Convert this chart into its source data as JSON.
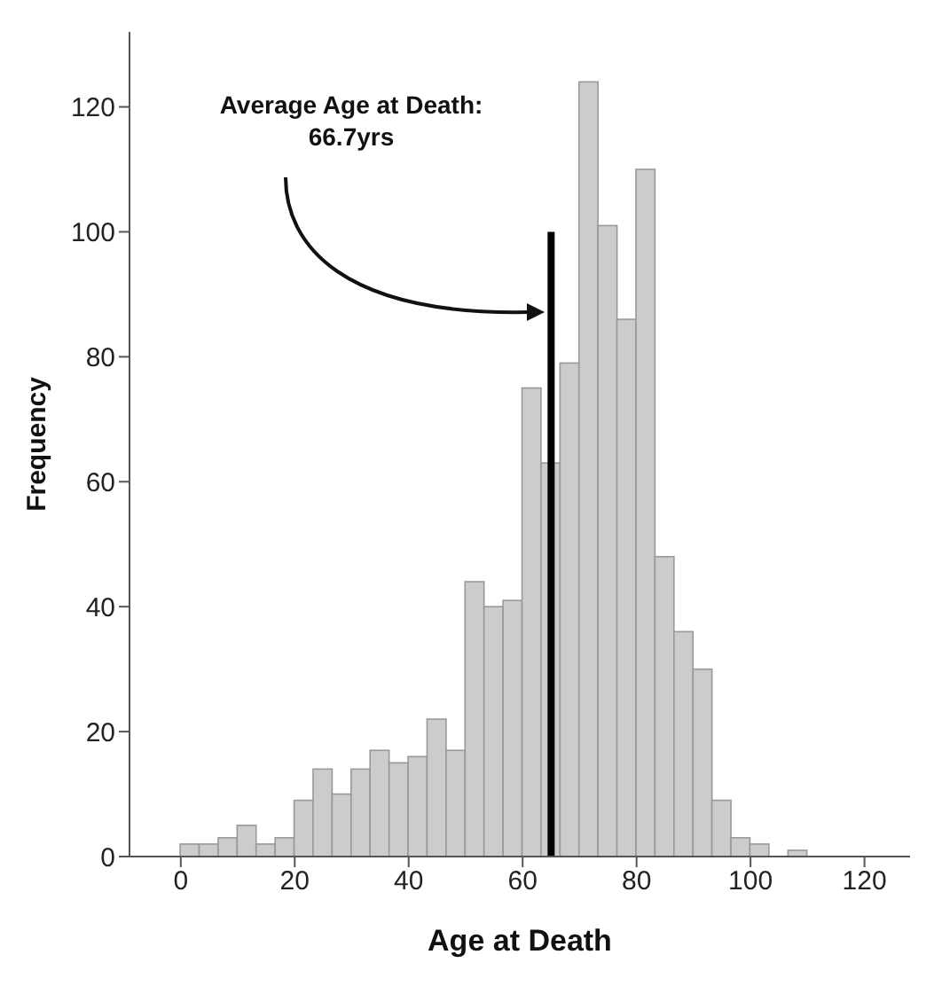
{
  "chart_data": {
    "type": "histogram",
    "xlabel": "Age at Death",
    "ylabel": "Frequency",
    "bins": [
      0,
      3.33,
      6.67,
      10,
      13.33,
      16.67,
      20,
      23.33,
      26.67,
      30,
      33.33,
      36.67,
      40,
      43.33,
      46.67,
      50,
      53.33,
      56.67,
      60,
      63.33,
      66.67,
      70,
      73.33,
      76.67,
      80,
      83.33,
      86.67,
      90,
      93.33,
      96.67,
      100,
      103.33,
      106.67,
      110
    ],
    "values": [
      2,
      2,
      3,
      5,
      2,
      3,
      9,
      14,
      10,
      14,
      17,
      15,
      16,
      22,
      17,
      44,
      40,
      41,
      75,
      63,
      79,
      124,
      101,
      86,
      110,
      48,
      36,
      30,
      9,
      3,
      2,
      0,
      1
    ],
    "color": "#cccccc",
    "series": [
      {
        "type": "line",
        "x": [
          65,
          65
        ],
        "values": [
          0,
          100
        ],
        "color": "#000000"
      }
    ],
    "annotations": [
      "Average Age at Death:\n66.7yrs"
    ],
    "xlim": [
      -9,
      128
    ],
    "xticks": [
      0,
      20,
      40,
      60,
      80,
      100,
      120
    ],
    "ylim": [
      0,
      132
    ],
    "yticks": [
      0,
      20,
      40,
      60,
      80,
      100,
      120
    ],
    "grid": false,
    "legend": false
  }
}
